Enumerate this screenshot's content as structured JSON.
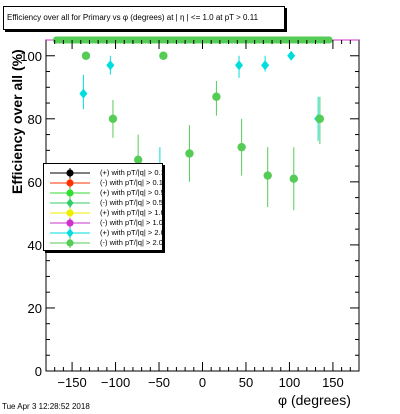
{
  "chart_data": {
    "type": "scatter",
    "title": "Efficiency over all for Primary vs φ (degrees) at | η | <= 1.0 at pT > 0.11",
    "xlabel": "φ (degrees)",
    "ylabel": "Efficiency over all (%)",
    "xlim": [
      -180,
      180
    ],
    "ylim": [
      0,
      105
    ],
    "xticks": [
      "−150",
      "−100",
      "−50",
      "0",
      "50",
      "100",
      "150"
    ],
    "xtick_values": [
      -150,
      -100,
      -50,
      0,
      50,
      100,
      150
    ],
    "yticks": [
      "0",
      "20",
      "40",
      "60",
      "80",
      "100"
    ],
    "ytick_values": [
      0,
      20,
      40,
      60,
      80,
      100
    ],
    "grid": false,
    "legend_position": "middle-left",
    "ref_line": 105,
    "ref_line_color": "#cc33cc",
    "series": [
      {
        "name": "(+) with pT/|q| > 0.1",
        "color": "#000000",
        "marker": "circle",
        "points": []
      },
      {
        "name": "(-) with pT/|q| > 0.1",
        "color": "#ff3300",
        "marker": "circle",
        "points": []
      },
      {
        "name": "(+) with pT/|q| > 0.5",
        "color": "#33dd33",
        "marker": "circle",
        "points": []
      },
      {
        "name": "(-) with pT/|q| > 0.5",
        "color": "#33cc66",
        "marker": "diamond",
        "points": []
      },
      {
        "name": "(+) with pT/|q| > 1.0",
        "color": "#eeee00",
        "marker": "circle",
        "points": []
      },
      {
        "name": "(-) with pT/|q| > 1.0",
        "color": "#cc33cc",
        "marker": "circle",
        "points": []
      },
      {
        "name": "(+) with pT/|q| > 2.0",
        "color": "#00dddd",
        "marker": "diamond",
        "points": [
          {
            "x": -137,
            "y": 88,
            "lo": 83,
            "hi": 94
          },
          {
            "x": -106,
            "y": 97,
            "lo": 94,
            "hi": 100
          },
          {
            "x": -78,
            "y": 57,
            "lo": 52,
            "hi": 63
          },
          {
            "x": -49,
            "y": 64,
            "lo": 56,
            "hi": 71
          },
          {
            "x": 42,
            "y": 97,
            "lo": 93,
            "hi": 100
          },
          {
            "x": 72,
            "y": 97,
            "lo": 95,
            "hi": 100
          },
          {
            "x": 102,
            "y": 100,
            "lo": 99,
            "hi": 100
          },
          {
            "x": 133,
            "y": 80,
            "lo": 73,
            "hi": 87
          }
        ]
      },
      {
        "name": "(-) with pT/|q| > 2.0",
        "color": "#55cc55",
        "marker": "circle",
        "points": [
          {
            "x": -134,
            "y": 100,
            "lo": 100,
            "hi": 100
          },
          {
            "x": -103,
            "y": 80,
            "lo": 74,
            "hi": 86
          },
          {
            "x": -74,
            "y": 67,
            "lo": 59,
            "hi": 75
          },
          {
            "x": -45,
            "y": 100,
            "lo": 100,
            "hi": 100
          },
          {
            "x": -15,
            "y": 69,
            "lo": 60,
            "hi": 78
          },
          {
            "x": 16,
            "y": 87,
            "lo": 81,
            "hi": 92
          },
          {
            "x": 45,
            "y": 71,
            "lo": 62,
            "hi": 80
          },
          {
            "x": 75,
            "y": 62,
            "lo": 52,
            "hi": 71
          },
          {
            "x": 105,
            "y": 61,
            "lo": 51,
            "hi": 71
          },
          {
            "x": 135,
            "y": 80,
            "lo": 72,
            "hi": 87
          }
        ]
      }
    ],
    "top_band": {
      "name": "(-) with pT/|q| > 2.0",
      "y": 105,
      "x_from": -168,
      "x_to": 146,
      "step": 3.2
    }
  },
  "footer": {
    "datestamp": "Tue Apr  3 12:28:52 2018"
  }
}
